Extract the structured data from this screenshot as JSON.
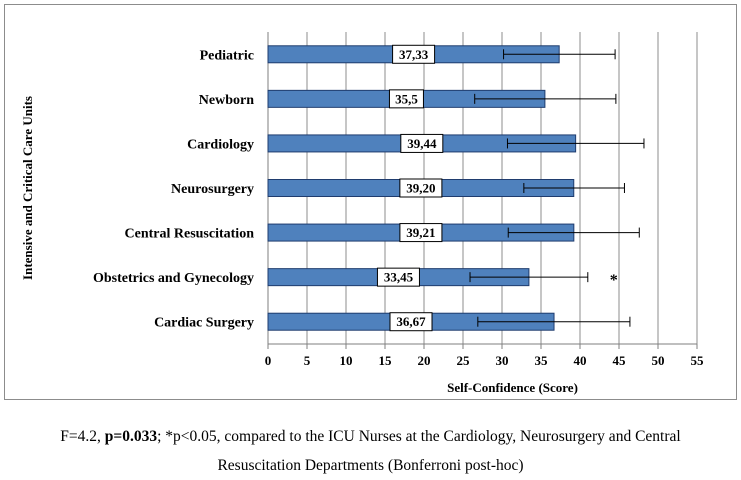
{
  "chart_data": {
    "type": "bar",
    "orientation": "horizontal",
    "categories": [
      "Pediatric",
      "Newborn",
      "Cardiology",
      "Neurosurgery",
      "Central Resuscitation",
      "Obstetrics and Gynecology",
      "Cardiac Surgery"
    ],
    "values": [
      37.33,
      35.5,
      39.44,
      39.2,
      39.21,
      33.45,
      36.67
    ],
    "value_labels": [
      "37,33",
      "35,5",
      "39,44",
      "39,20",
      "39,21",
      "33,45",
      "36,67"
    ],
    "error_low": [
      30.2,
      26.5,
      30.7,
      32.8,
      30.8,
      25.9,
      26.9
    ],
    "error_high": [
      44.5,
      44.6,
      48.2,
      45.7,
      47.6,
      41.0,
      46.4
    ],
    "annotations": [
      {
        "category": "Obstetrics and Gynecology",
        "text": "*"
      }
    ],
    "xlabel": "Self-Confidence (Score)",
    "ylabel": "Intensive and Critical Care Units",
    "xlim": [
      0,
      55
    ],
    "xticks": [
      0,
      5,
      10,
      15,
      20,
      25,
      30,
      35,
      40,
      45,
      50,
      55
    ],
    "grid": "vertical",
    "bar_color": "#4f81bd",
    "bar_edge_color": "#1f3c6e"
  },
  "caption": {
    "line1_pre": "F=4.2, ",
    "line1_bold": "p=0.033",
    "line1_post": "; *p<0.05, compared to the ICU Nurses at the Cardiology, Neurosurgery and Central",
    "line2": "Resuscitation Departments (Bonferroni post-hoc)"
  }
}
